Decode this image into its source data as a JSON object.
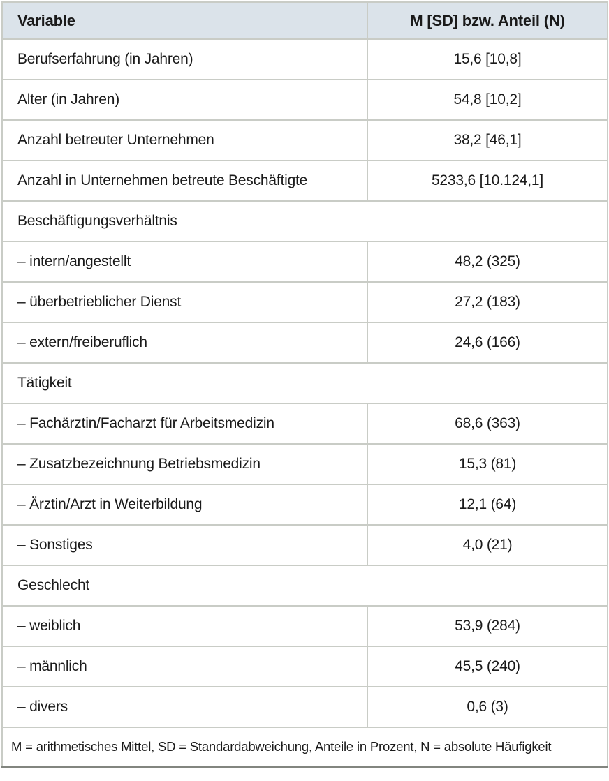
{
  "table": {
    "columns": [
      "Variable",
      "M [SD] bzw. Anteil (N)"
    ],
    "rows": [
      {
        "type": "data",
        "label": "Berufserfahrung (in Jahren)",
        "value": "15,6 [10,8]"
      },
      {
        "type": "data",
        "label": "Alter (in Jahren)",
        "value": "54,8 [10,2]"
      },
      {
        "type": "data",
        "label": "Anzahl betreuter Unternehmen",
        "value": "38,2 [46,1]"
      },
      {
        "type": "data",
        "label": "Anzahl in Unternehmen betreute Beschäftigte",
        "value": "5233,6 [10.124,1]"
      },
      {
        "type": "section",
        "label": "Beschäftigungsverhältnis"
      },
      {
        "type": "data",
        "label": "– intern/angestellt",
        "value": "48,2 (325)"
      },
      {
        "type": "data",
        "label": "– überbetrieblicher Dienst",
        "value": "27,2 (183)"
      },
      {
        "type": "data",
        "label": "– extern/freiberuflich",
        "value": "24,6 (166)"
      },
      {
        "type": "section",
        "label": "Tätigkeit"
      },
      {
        "type": "data",
        "label": "– Fachärztin/Facharzt für Arbeitsmedizin",
        "value": "68,6 (363)"
      },
      {
        "type": "data",
        "label": "– Zusatzbezeichnung Betriebsmedizin",
        "value": "15,3 (81)"
      },
      {
        "type": "data",
        "label": "– Ärztin/Arzt in Weiterbildung",
        "value": "12,1 (64)"
      },
      {
        "type": "data",
        "label": "– Sonstiges",
        "value": "4,0 (21)"
      },
      {
        "type": "section",
        "label": "Geschlecht"
      },
      {
        "type": "data",
        "label": "– weiblich",
        "value": "53,9 (284)"
      },
      {
        "type": "data",
        "label": "– männlich",
        "value": "45,5 (240)"
      },
      {
        "type": "data",
        "label": "– divers",
        "value": "0,6 (3)"
      }
    ],
    "footnote": "M = arithmetisches Mittel, SD = Standardabweichung, Anteile in Prozent, N = absolute Häufigkeit"
  },
  "colors": {
    "header_bg": "#dbe3ea",
    "grid_line": "#c9ccc6",
    "outer_border": "#9da09a",
    "bottom_border": "#82857f",
    "text": "#1a1a1a"
  }
}
